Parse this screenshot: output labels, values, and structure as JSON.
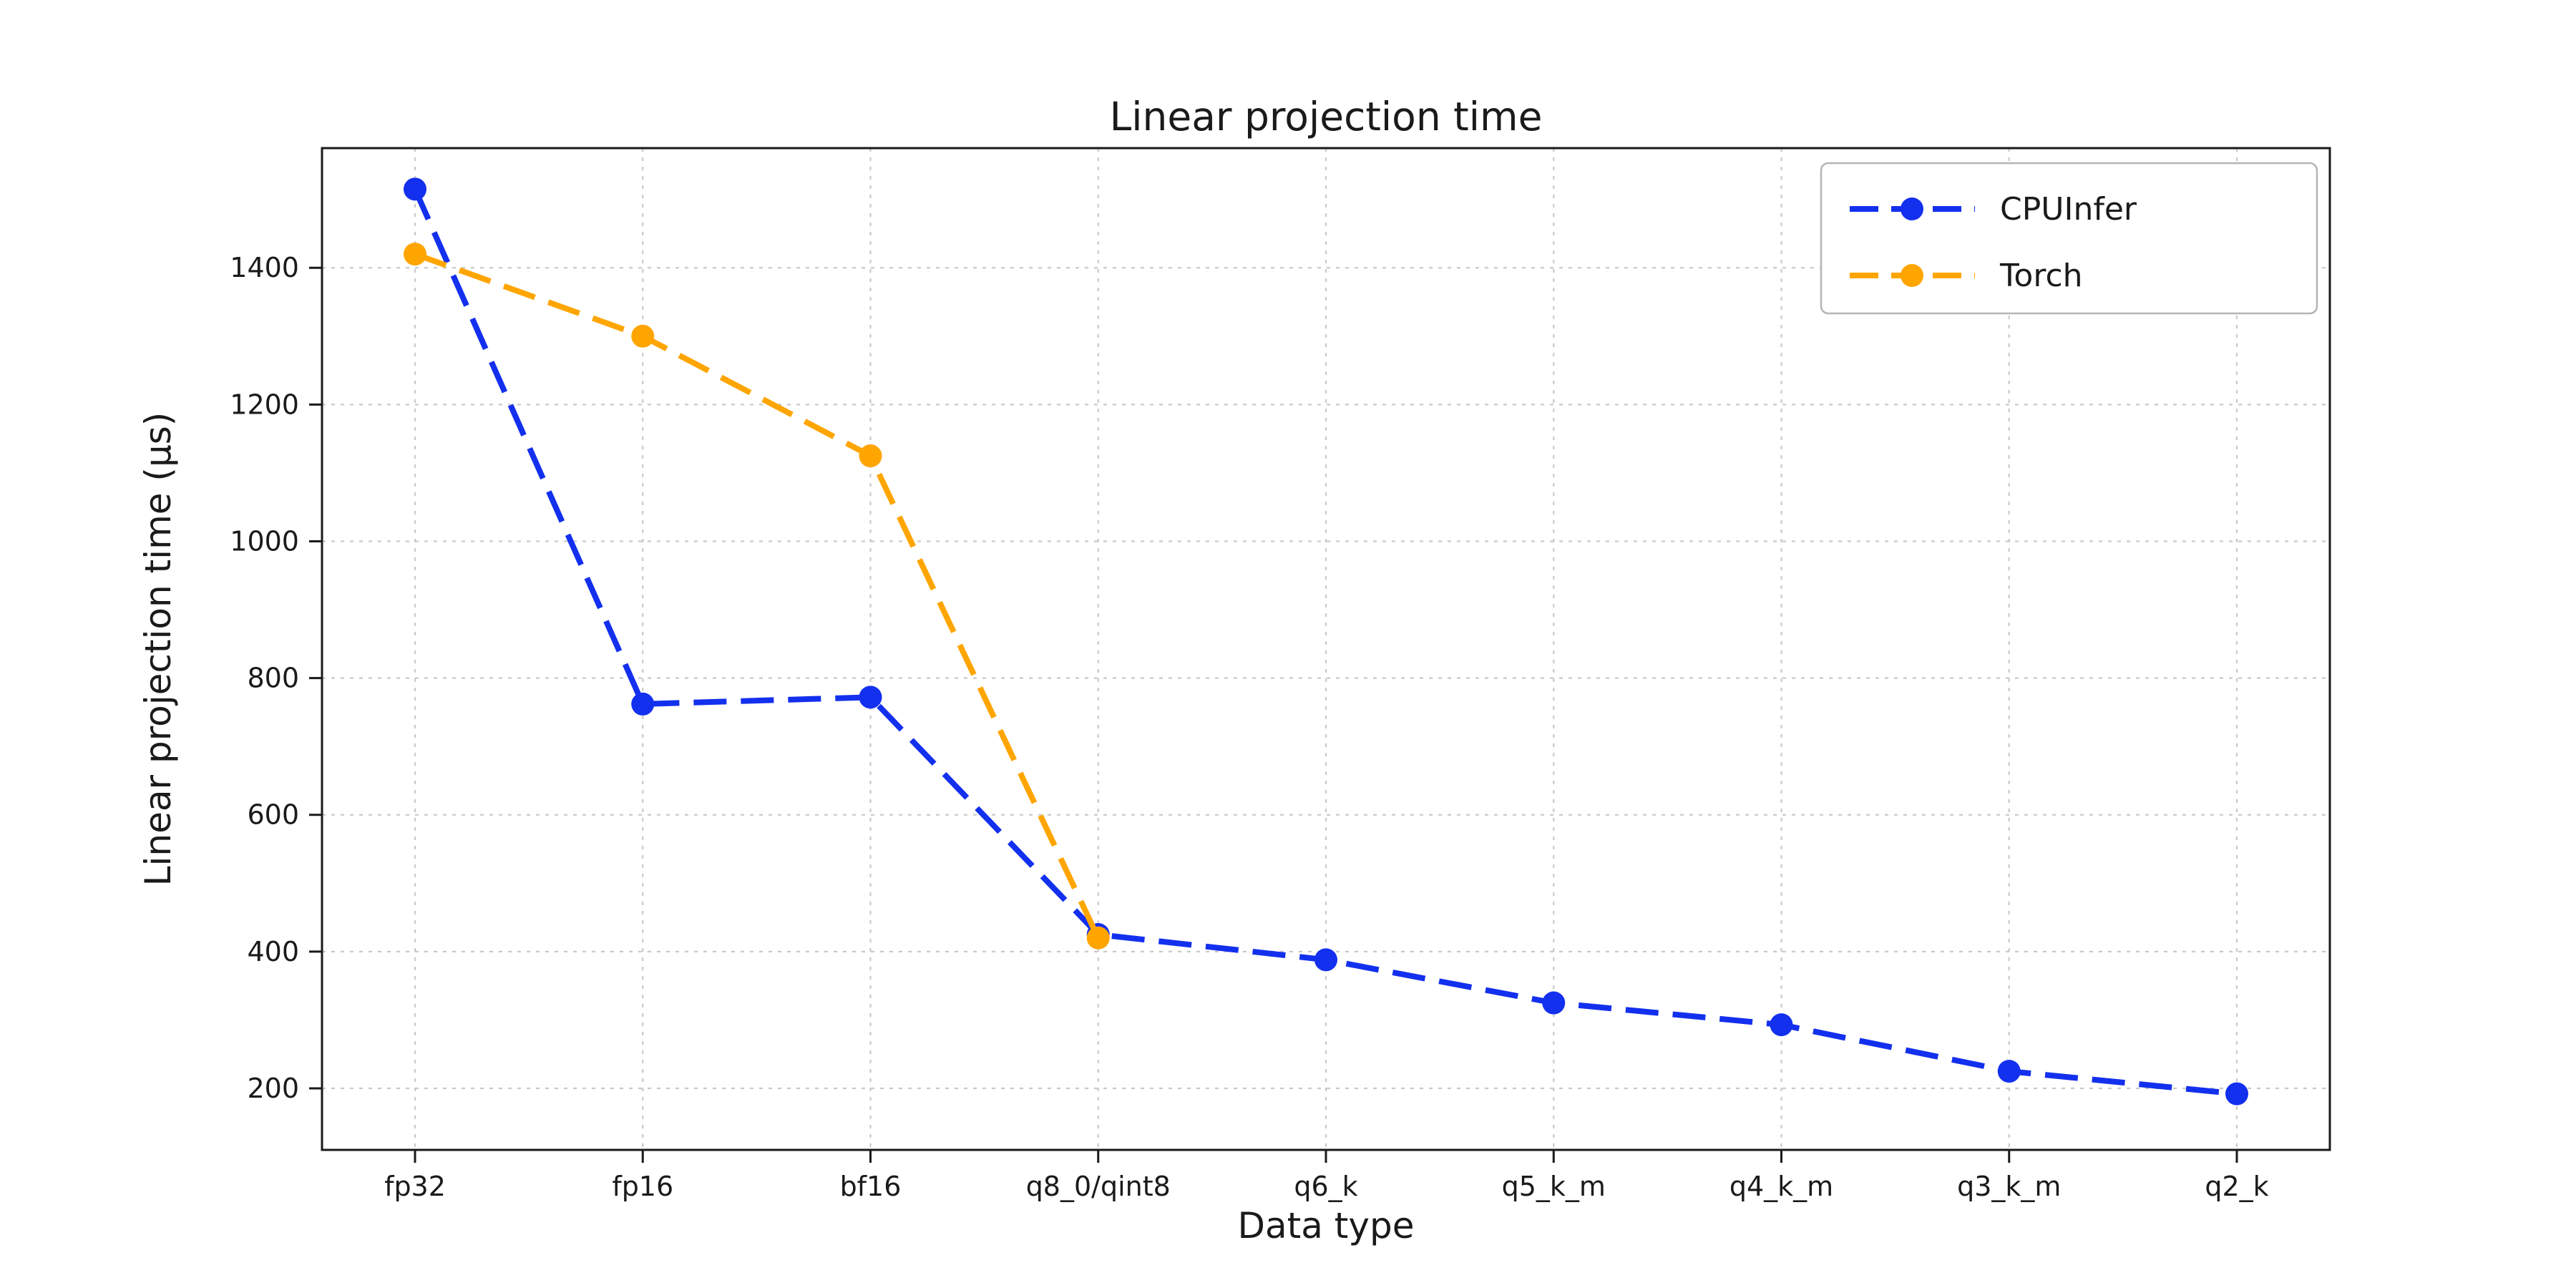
{
  "figure": {
    "background": "#ffffff"
  },
  "chart_data": {
    "type": "line",
    "title": "Linear projection time",
    "xlabel": "Data type",
    "ylabel": "Linear projection time (µs)",
    "categories": [
      "fp32",
      "fp16",
      "bf16",
      "q8_0/qint8",
      "q6_k",
      "q5_k_m",
      "q4_k_m",
      "q3_k_m",
      "q2_k"
    ],
    "series": [
      {
        "name": "CPUInfer",
        "color": "#1330ee",
        "linestyle": "dashed",
        "marker": "circle",
        "values": [
          1515,
          762,
          772,
          425,
          388,
          325,
          293,
          225,
          192
        ]
      },
      {
        "name": "Torch",
        "color": "#ffa500",
        "linestyle": "dashed",
        "marker": "circle",
        "values": [
          1420,
          1300,
          1125,
          420,
          null,
          null,
          null,
          null,
          null
        ]
      }
    ],
    "yticks": [
      200,
      400,
      600,
      800,
      1000,
      1200,
      1400
    ],
    "ylim": [
      110,
      1575
    ],
    "grid": true,
    "grid_color": "#c4c4c4",
    "axis_color": "#1a1a1a",
    "legend": {
      "position": "upper right",
      "labels": [
        "CPUInfer",
        "Torch"
      ]
    }
  }
}
